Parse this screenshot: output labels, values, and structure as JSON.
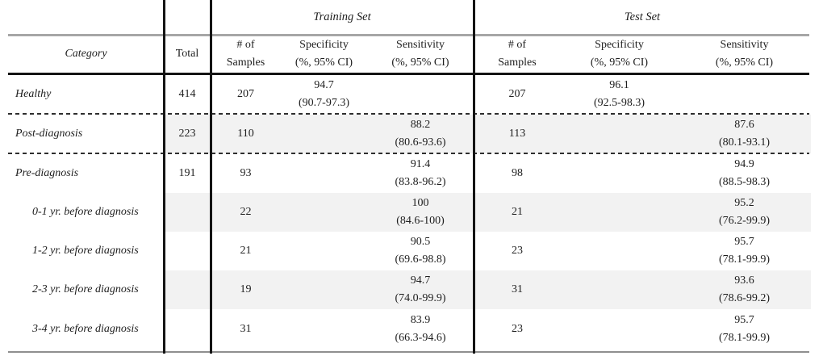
{
  "table": {
    "training_header": "Training Set",
    "test_header": "Test Set",
    "col_category": "Category",
    "col_total": "Total",
    "col_samples_line1": "# of",
    "col_samples_line2": "Samples",
    "col_specificity_line1": "Specificity",
    "col_specificity_line2": "(%, 95% CI)",
    "col_sensitivity_line1": "Sensitivity",
    "col_sensitivity_line2": "(%, 95% CI)",
    "rows": [
      {
        "label": "Healthy",
        "total": "414",
        "train_n": "207",
        "train_spec": "94.7",
        "train_spec_ci": "(90.7-97.3)",
        "train_sens": "",
        "train_sens_ci": "",
        "test_n": "207",
        "test_spec": "96.1",
        "test_spec_ci": "(92.5-98.3)",
        "test_sens": "",
        "test_sens_ci": ""
      },
      {
        "label": "Post-diagnosis",
        "total": "223",
        "train_n": "110",
        "train_spec": "",
        "train_spec_ci": "",
        "train_sens": "88.2",
        "train_sens_ci": "(80.6-93.6)",
        "test_n": "113",
        "test_spec": "",
        "test_spec_ci": "",
        "test_sens": "87.6",
        "test_sens_ci": "(80.1-93.1)"
      },
      {
        "label": "Pre-diagnosis",
        "total": "191",
        "train_n": "93",
        "train_spec": "",
        "train_spec_ci": "",
        "train_sens": "91.4",
        "train_sens_ci": "(83.8-96.2)",
        "test_n": "98",
        "test_spec": "",
        "test_spec_ci": "",
        "test_sens": "94.9",
        "test_sens_ci": "(88.5-98.3)"
      },
      {
        "label": "0-1 yr. before diagnosis",
        "total": "",
        "train_n": "22",
        "train_spec": "",
        "train_spec_ci": "",
        "train_sens": "100",
        "train_sens_ci": "(84.6-100)",
        "test_n": "21",
        "test_spec": "",
        "test_spec_ci": "",
        "test_sens": "95.2",
        "test_sens_ci": "(76.2-99.9)"
      },
      {
        "label": "1-2 yr. before diagnosis",
        "total": "",
        "train_n": "21",
        "train_spec": "",
        "train_spec_ci": "",
        "train_sens": "90.5",
        "train_sens_ci": "(69.6-98.8)",
        "test_n": "23",
        "test_spec": "",
        "test_spec_ci": "",
        "test_sens": "95.7",
        "test_sens_ci": "(78.1-99.9)"
      },
      {
        "label": "2-3 yr. before diagnosis",
        "total": "",
        "train_n": "19",
        "train_spec": "",
        "train_spec_ci": "",
        "train_sens": "94.7",
        "train_sens_ci": "(74.0-99.9)",
        "test_n": "31",
        "test_spec": "",
        "test_spec_ci": "",
        "test_sens": "93.6",
        "test_sens_ci": "(78.6-99.2)"
      },
      {
        "label": "3-4 yr. before diagnosis",
        "total": "",
        "train_n": "31",
        "train_spec": "",
        "train_spec_ci": "",
        "train_sens": "83.9",
        "train_sens_ci": "(66.3-94.6)",
        "test_n": "23",
        "test_spec": "",
        "test_spec_ci": "",
        "test_sens": "95.7",
        "test_sens_ci": "(78.1-99.9)"
      }
    ]
  }
}
